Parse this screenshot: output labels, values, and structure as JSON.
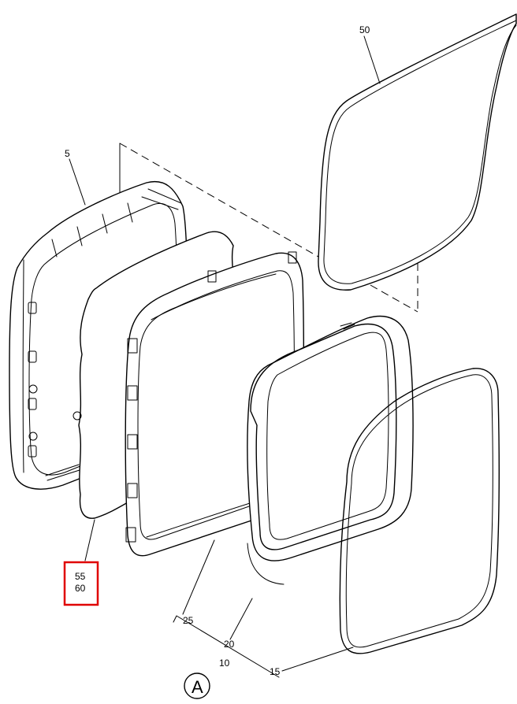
{
  "colors": {
    "highlight_box": "#e00000",
    "line": "#000000",
    "background": "#ffffff"
  },
  "callouts": {
    "c50": "50",
    "c5": "5",
    "c55": "55",
    "c60": "60",
    "c25": "25",
    "c20": "20",
    "c10": "10",
    "c15": "15"
  },
  "view_label": "A"
}
